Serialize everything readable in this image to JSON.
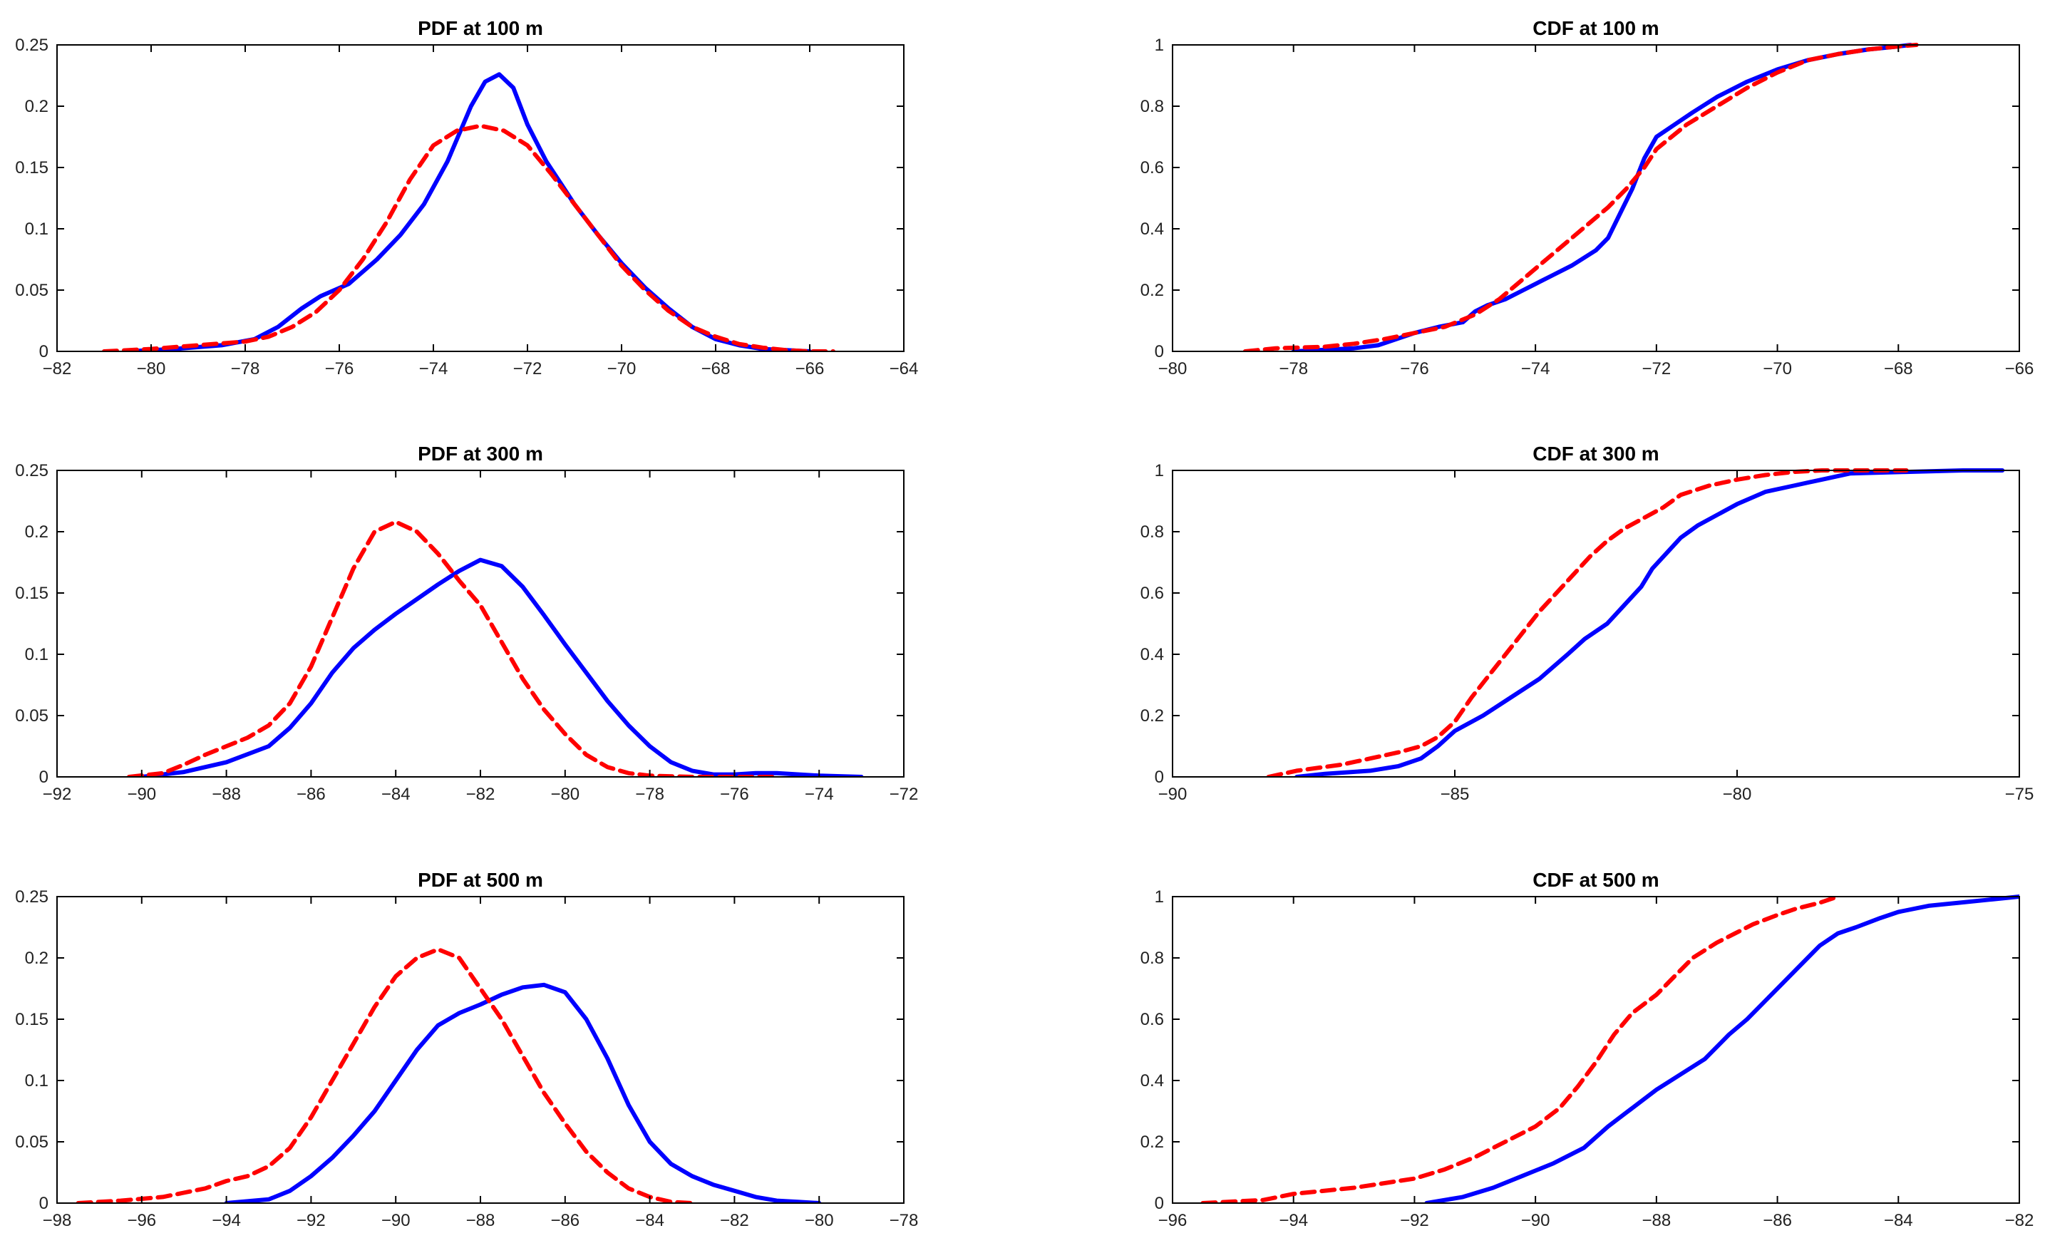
{
  "chart_data": [
    {
      "type": "line",
      "title": "PDF at 100 m",
      "xlim": [
        -82,
        -64
      ],
      "ylim": [
        0,
        0.25
      ],
      "xticks": [
        -82,
        -80,
        -78,
        -76,
        -74,
        -72,
        -70,
        -68,
        -66,
        -64
      ],
      "yticks": [
        0,
        0.05,
        0.1,
        0.15,
        0.2,
        0.25
      ],
      "grid": false,
      "series": [
        {
          "color": "#0000ff",
          "style": "solid",
          "x": [
            -80.5,
            -79.5,
            -78.5,
            -77.8,
            -77.3,
            -76.8,
            -76.4,
            -75.8,
            -75.2,
            -74.7,
            -74.2,
            -73.7,
            -73.2,
            -72.9,
            -72.6,
            -72.3,
            -72.0,
            -71.6,
            -71.0,
            -70.5,
            -70.0,
            -69.5,
            -69.0,
            -68.5,
            -68.0,
            -67.5,
            -67.0,
            -66.5,
            -66.0
          ],
          "y": [
            0.0,
            0.002,
            0.005,
            0.01,
            0.02,
            0.035,
            0.045,
            0.055,
            0.075,
            0.095,
            0.12,
            0.155,
            0.2,
            0.22,
            0.226,
            0.215,
            0.185,
            0.155,
            0.12,
            0.095,
            0.072,
            0.052,
            0.035,
            0.02,
            0.01,
            0.005,
            0.002,
            0.001,
            0.0
          ]
        },
        {
          "color": "#ff0000",
          "style": "dashed",
          "x": [
            -81.0,
            -80.0,
            -79.0,
            -78.0,
            -77.5,
            -77.0,
            -76.5,
            -76.0,
            -75.5,
            -75.0,
            -74.5,
            -74.0,
            -73.5,
            -73.0,
            -72.5,
            -72.0,
            -71.5,
            -71.0,
            -70.5,
            -70.0,
            -69.5,
            -69.0,
            -68.5,
            -68.0,
            -67.5,
            -67.0,
            -66.5,
            -66.0,
            -65.5
          ],
          "y": [
            0.0,
            0.002,
            0.005,
            0.008,
            0.012,
            0.02,
            0.032,
            0.05,
            0.075,
            0.105,
            0.14,
            0.168,
            0.18,
            0.184,
            0.18,
            0.168,
            0.145,
            0.12,
            0.095,
            0.07,
            0.05,
            0.033,
            0.02,
            0.012,
            0.006,
            0.003,
            0.001,
            0.0,
            0.0
          ]
        }
      ]
    },
    {
      "type": "line",
      "title": "CDF at 100 m",
      "xlim": [
        -80,
        -66
      ],
      "ylim": [
        0,
        1
      ],
      "xticks": [
        -80,
        -78,
        -76,
        -74,
        -72,
        -70,
        -68,
        -66
      ],
      "yticks": [
        0,
        0.2,
        0.4,
        0.6,
        0.8,
        1
      ],
      "grid": false,
      "series": [
        {
          "color": "#0000ff",
          "style": "solid",
          "x": [
            -78.0,
            -77.5,
            -77.0,
            -76.6,
            -76.3,
            -76.0,
            -75.6,
            -75.2,
            -75.0,
            -74.8,
            -74.5,
            -74.2,
            -74.0,
            -73.7,
            -73.4,
            -73.0,
            -72.8,
            -72.6,
            -72.4,
            -72.2,
            -72.0,
            -71.7,
            -71.4,
            -71.0,
            -70.5,
            -70.0,
            -69.5,
            -69.0,
            -68.5,
            -68.0,
            -67.8
          ],
          "y": [
            0.0,
            0.005,
            0.01,
            0.02,
            0.04,
            0.06,
            0.08,
            0.095,
            0.13,
            0.15,
            0.17,
            0.2,
            0.22,
            0.25,
            0.28,
            0.33,
            0.37,
            0.45,
            0.53,
            0.63,
            0.7,
            0.74,
            0.78,
            0.83,
            0.88,
            0.92,
            0.95,
            0.97,
            0.985,
            0.995,
            1.0
          ]
        },
        {
          "color": "#ff0000",
          "style": "dashed",
          "x": [
            -78.8,
            -78.3,
            -77.5,
            -77.0,
            -76.5,
            -76.0,
            -75.5,
            -75.0,
            -74.6,
            -74.3,
            -74.0,
            -73.7,
            -73.4,
            -73.1,
            -72.8,
            -72.5,
            -72.2,
            -72.0,
            -71.5,
            -71.0,
            -70.5,
            -70.0,
            -69.5,
            -69.0,
            -68.5,
            -68.0,
            -67.7
          ],
          "y": [
            0.0,
            0.01,
            0.015,
            0.025,
            0.04,
            0.06,
            0.08,
            0.12,
            0.17,
            0.22,
            0.27,
            0.32,
            0.37,
            0.42,
            0.47,
            0.53,
            0.6,
            0.66,
            0.74,
            0.8,
            0.86,
            0.91,
            0.95,
            0.97,
            0.985,
            0.995,
            1.0
          ]
        }
      ]
    },
    {
      "type": "line",
      "title": "PDF at 300 m",
      "xlim": [
        -92,
        -72
      ],
      "ylim": [
        0,
        0.25
      ],
      "xticks": [
        -92,
        -90,
        -88,
        -86,
        -84,
        -82,
        -80,
        -78,
        -76,
        -74,
        -72
      ],
      "yticks": [
        0,
        0.05,
        0.1,
        0.15,
        0.2,
        0.25
      ],
      "grid": false,
      "series": [
        {
          "color": "#0000ff",
          "style": "solid",
          "x": [
            -90.0,
            -89.0,
            -88.0,
            -87.0,
            -86.5,
            -86.0,
            -85.5,
            -85.0,
            -84.5,
            -84.0,
            -83.5,
            -83.0,
            -82.5,
            -82.0,
            -81.5,
            -81.0,
            -80.5,
            -80.0,
            -79.5,
            -79.0,
            -78.5,
            -78.0,
            -77.5,
            -77.0,
            -76.5,
            -76.0,
            -75.5,
            -75.0,
            -74.0,
            -73.0
          ],
          "y": [
            0.0,
            0.004,
            0.012,
            0.025,
            0.04,
            0.06,
            0.085,
            0.105,
            0.12,
            0.133,
            0.145,
            0.157,
            0.168,
            0.177,
            0.172,
            0.155,
            0.132,
            0.108,
            0.085,
            0.062,
            0.042,
            0.025,
            0.012,
            0.005,
            0.002,
            0.002,
            0.003,
            0.003,
            0.001,
            0.0
          ]
        },
        {
          "color": "#ff0000",
          "style": "dashed",
          "x": [
            -90.3,
            -89.5,
            -89.0,
            -88.5,
            -88.0,
            -87.5,
            -87.0,
            -86.5,
            -86.0,
            -85.5,
            -85.0,
            -84.5,
            -84.0,
            -83.5,
            -83.0,
            -82.5,
            -82.0,
            -81.5,
            -81.0,
            -80.5,
            -80.0,
            -79.5,
            -79.0,
            -78.5,
            -78.0,
            -77.0,
            -76.0,
            -75.0
          ],
          "y": [
            0.0,
            0.003,
            0.01,
            0.018,
            0.025,
            0.032,
            0.042,
            0.06,
            0.09,
            0.13,
            0.17,
            0.2,
            0.208,
            0.2,
            0.182,
            0.16,
            0.14,
            0.11,
            0.08,
            0.055,
            0.035,
            0.018,
            0.008,
            0.003,
            0.001,
            0.0,
            0.0,
            0.0
          ]
        }
      ]
    },
    {
      "type": "line",
      "title": "CDF at 300 m",
      "xlim": [
        -90,
        -75
      ],
      "ylim": [
        0,
        1
      ],
      "xticks": [
        -90,
        -85,
        -80,
        -75
      ],
      "yticks": [
        0,
        0.2,
        0.4,
        0.6,
        0.8,
        1
      ],
      "grid": false,
      "series": [
        {
          "color": "#0000ff",
          "style": "solid",
          "x": [
            -87.8,
            -87.3,
            -86.5,
            -86.0,
            -85.6,
            -85.3,
            -85.0,
            -84.5,
            -84.0,
            -83.5,
            -83.0,
            -82.7,
            -82.3,
            -82.0,
            -81.7,
            -81.5,
            -81.2,
            -81.0,
            -80.7,
            -80.3,
            -80.0,
            -79.5,
            -79.0,
            -78.5,
            -78.0,
            -77.0,
            -76.0,
            -75.3
          ],
          "y": [
            0.0,
            0.01,
            0.02,
            0.035,
            0.06,
            0.1,
            0.15,
            0.2,
            0.26,
            0.32,
            0.4,
            0.45,
            0.5,
            0.56,
            0.62,
            0.68,
            0.74,
            0.78,
            0.82,
            0.86,
            0.89,
            0.93,
            0.95,
            0.97,
            0.99,
            0.995,
            1.0,
            1.0
          ]
        },
        {
          "color": "#ff0000",
          "style": "dashed",
          "x": [
            -88.3,
            -87.8,
            -87.0,
            -86.5,
            -86.0,
            -85.6,
            -85.3,
            -85.0,
            -84.7,
            -84.4,
            -84.1,
            -83.8,
            -83.5,
            -83.2,
            -82.9,
            -82.6,
            -82.3,
            -82.0,
            -81.7,
            -81.3,
            -81.0,
            -80.5,
            -80.0,
            -79.5,
            -79.0,
            -78.5,
            -78.0,
            -77.5,
            -77.0
          ],
          "y": [
            0.0,
            0.02,
            0.04,
            0.06,
            0.08,
            0.1,
            0.13,
            0.18,
            0.26,
            0.33,
            0.4,
            0.47,
            0.54,
            0.6,
            0.66,
            0.72,
            0.77,
            0.81,
            0.84,
            0.88,
            0.92,
            0.95,
            0.97,
            0.985,
            0.995,
            1.0,
            1.0,
            1.0,
            1.0
          ]
        }
      ]
    },
    {
      "type": "line",
      "title": "PDF at 500 m",
      "xlim": [
        -98,
        -78
      ],
      "ylim": [
        0,
        0.25
      ],
      "xticks": [
        -98,
        -96,
        -94,
        -92,
        -90,
        -88,
        -86,
        -84,
        -82,
        -80,
        -78
      ],
      "yticks": [
        0,
        0.05,
        0.1,
        0.15,
        0.2,
        0.25
      ],
      "grid": false,
      "series": [
        {
          "color": "#0000ff",
          "style": "solid",
          "x": [
            -94.0,
            -93.0,
            -92.5,
            -92.0,
            -91.5,
            -91.0,
            -90.5,
            -90.0,
            -89.5,
            -89.0,
            -88.5,
            -88.0,
            -87.5,
            -87.0,
            -86.5,
            -86.0,
            -85.5,
            -85.0,
            -84.5,
            -84.0,
            -83.5,
            -83.0,
            -82.5,
            -82.0,
            -81.5,
            -81.0,
            -80.5,
            -80.0
          ],
          "y": [
            0.0,
            0.003,
            0.01,
            0.022,
            0.037,
            0.055,
            0.075,
            0.1,
            0.125,
            0.145,
            0.155,
            0.162,
            0.17,
            0.176,
            0.178,
            0.172,
            0.15,
            0.118,
            0.08,
            0.05,
            0.032,
            0.022,
            0.015,
            0.01,
            0.005,
            0.002,
            0.001,
            0.0
          ]
        },
        {
          "color": "#ff0000",
          "style": "dashed",
          "x": [
            -97.5,
            -96.5,
            -95.5,
            -94.5,
            -94.0,
            -93.5,
            -93.0,
            -92.5,
            -92.0,
            -91.5,
            -91.0,
            -90.5,
            -90.0,
            -89.5,
            -89.0,
            -88.5,
            -88.0,
            -87.5,
            -87.0,
            -86.5,
            -86.0,
            -85.5,
            -85.0,
            -84.5,
            -84.0,
            -83.5,
            -83.0
          ],
          "y": [
            0.0,
            0.002,
            0.005,
            0.012,
            0.018,
            0.022,
            0.03,
            0.045,
            0.07,
            0.1,
            0.13,
            0.16,
            0.185,
            0.2,
            0.207,
            0.2,
            0.175,
            0.15,
            0.12,
            0.09,
            0.065,
            0.042,
            0.025,
            0.012,
            0.005,
            0.001,
            0.0
          ]
        }
      ]
    },
    {
      "type": "line",
      "title": "CDF at 500 m",
      "xlim": [
        -96,
        -82
      ],
      "ylim": [
        0,
        1
      ],
      "xticks": [
        -96,
        -94,
        -92,
        -90,
        -88,
        -86,
        -84,
        -82
      ],
      "yticks": [
        0,
        0.2,
        0.4,
        0.6,
        0.8,
        1
      ],
      "grid": false,
      "series": [
        {
          "color": "#0000ff",
          "style": "solid",
          "x": [
            -91.8,
            -91.2,
            -90.7,
            -90.2,
            -89.7,
            -89.2,
            -88.8,
            -88.4,
            -88.0,
            -87.6,
            -87.2,
            -86.8,
            -86.5,
            -86.2,
            -85.9,
            -85.6,
            -85.3,
            -85.0,
            -84.7,
            -84.3,
            -84.0,
            -83.5,
            -83.0,
            -82.5,
            -82.0
          ],
          "y": [
            0.0,
            0.02,
            0.05,
            0.09,
            0.13,
            0.18,
            0.25,
            0.31,
            0.37,
            0.42,
            0.47,
            0.55,
            0.6,
            0.66,
            0.72,
            0.78,
            0.84,
            0.88,
            0.9,
            0.93,
            0.95,
            0.97,
            0.98,
            0.99,
            1.0
          ]
        },
        {
          "color": "#ff0000",
          "style": "dashed",
          "x": [
            -95.5,
            -94.5,
            -94.0,
            -93.0,
            -92.0,
            -91.5,
            -91.0,
            -90.5,
            -90.0,
            -89.6,
            -89.3,
            -89.0,
            -88.7,
            -88.4,
            -88.0,
            -87.7,
            -87.4,
            -87.0,
            -86.7,
            -86.4,
            -86.0,
            -85.7,
            -85.3,
            -85.0
          ],
          "y": [
            0.0,
            0.01,
            0.03,
            0.05,
            0.08,
            0.11,
            0.15,
            0.2,
            0.25,
            0.31,
            0.38,
            0.46,
            0.55,
            0.62,
            0.68,
            0.74,
            0.8,
            0.85,
            0.88,
            0.91,
            0.94,
            0.96,
            0.98,
            1.0
          ]
        }
      ]
    }
  ]
}
